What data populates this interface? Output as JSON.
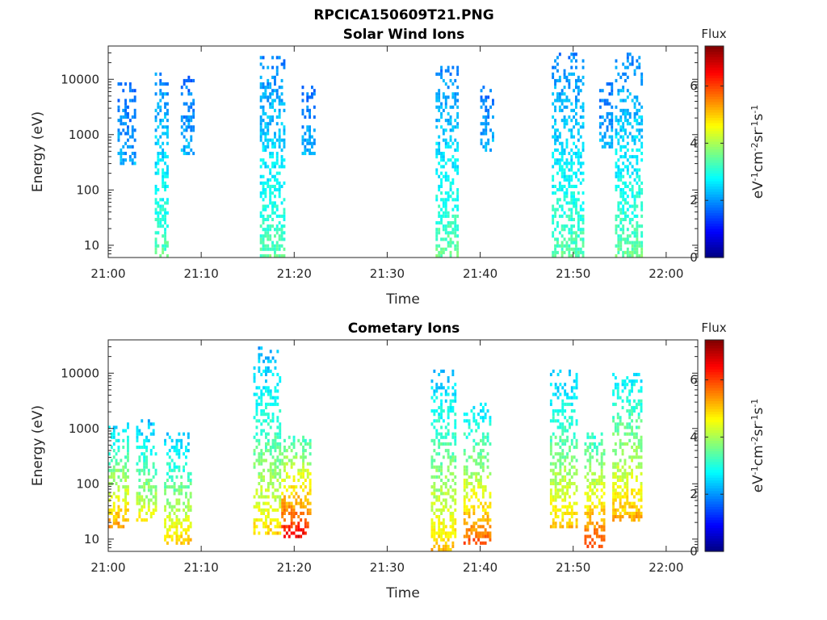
{
  "figure": {
    "file_title": "RPCICA150609T21.PNG"
  },
  "colorscale": {
    "name": "jet",
    "stops": [
      "#00007f",
      "#0000ff",
      "#007fff",
      "#00ffff",
      "#7fff7f",
      "#ffff00",
      "#ff7f00",
      "#ff0000",
      "#7f0000"
    ]
  },
  "chart_data": [
    {
      "type": "heatmap",
      "title": "Solar Wind Ions",
      "xlabel": "Time",
      "ylabel": "Energy (eV)",
      "x_ticks": [
        "21:00",
        "21:10",
        "21:20",
        "21:30",
        "21:40",
        "21:50",
        "22:00"
      ],
      "xlim_minutes": [
        0,
        63.4
      ],
      "y_scale": "log",
      "y_ticks": [
        10,
        100,
        1000,
        10000
      ],
      "ylim": [
        6,
        40000
      ],
      "colorbar": {
        "label": "Flux",
        "unit": "eV-1cm-2sr-1s-1",
        "ticks": [
          0,
          2,
          4,
          6
        ],
        "range": [
          0,
          7.4
        ]
      },
      "bursts": [
        {
          "t_start": 5.0,
          "t_end": 6.3,
          "e_min": 6,
          "e_max": 14000,
          "flux_min": 1.9,
          "flux_max": 3.5
        },
        {
          "t_start": 1.0,
          "t_end": 3.0,
          "e_min": 300,
          "e_max": 9000,
          "flux_min": 1.7,
          "flux_max": 2.2
        },
        {
          "t_start": 7.8,
          "t_end": 9.3,
          "e_min": 400,
          "e_max": 11000,
          "flux_min": 1.7,
          "flux_max": 2.3
        },
        {
          "t_start": 16.3,
          "t_end": 19.0,
          "e_min": 6,
          "e_max": 25000,
          "flux_min": 1.9,
          "flux_max": 3.5
        },
        {
          "t_start": 20.8,
          "t_end": 22.3,
          "e_min": 450,
          "e_max": 8000,
          "flux_min": 1.7,
          "flux_max": 2.3
        },
        {
          "t_start": 35.2,
          "t_end": 37.6,
          "e_min": 6,
          "e_max": 17000,
          "flux_min": 1.9,
          "flux_max": 3.6
        },
        {
          "t_start": 40.0,
          "t_end": 41.5,
          "e_min": 500,
          "e_max": 8000,
          "flux_min": 1.7,
          "flux_max": 2.3
        },
        {
          "t_start": 47.7,
          "t_end": 51.0,
          "e_min": 6,
          "e_max": 30000,
          "flux_min": 1.9,
          "flux_max": 3.5
        },
        {
          "t_start": 52.8,
          "t_end": 54.3,
          "e_min": 600,
          "e_max": 10000,
          "flux_min": 1.7,
          "flux_max": 2.3
        },
        {
          "t_start": 54.5,
          "t_end": 57.3,
          "e_min": 6,
          "e_max": 30000,
          "flux_min": 1.9,
          "flux_max": 3.6
        }
      ]
    },
    {
      "type": "heatmap",
      "title": "Cometary Ions",
      "xlabel": "Time",
      "ylabel": "Energy (eV)",
      "x_ticks": [
        "21:00",
        "21:10",
        "21:20",
        "21:30",
        "21:40",
        "21:50",
        "22:00"
      ],
      "xlim_minutes": [
        0,
        63.4
      ],
      "y_scale": "log",
      "y_ticks": [
        10,
        100,
        1000,
        10000
      ],
      "ylim": [
        6,
        40000
      ],
      "colorbar": {
        "label": "Flux",
        "unit": "eV-1cm-2sr-1s-1",
        "ticks": [
          0,
          2,
          4,
          6
        ],
        "range": [
          0,
          7.4
        ]
      },
      "bursts": [
        {
          "t_start": 0.0,
          "t_end": 2.2,
          "e_min": 15,
          "e_max": 1200,
          "flux_min": 2.5,
          "flux_max": 5.6
        },
        {
          "t_start": 3.0,
          "t_end": 5.2,
          "e_min": 20,
          "e_max": 1400,
          "flux_min": 2.3,
          "flux_max": 4.8
        },
        {
          "t_start": 6.0,
          "t_end": 9.0,
          "e_min": 8,
          "e_max": 900,
          "flux_min": 2.3,
          "flux_max": 5.2
        },
        {
          "t_start": 15.6,
          "t_end": 18.5,
          "e_min": 12,
          "e_max": 30000,
          "flux_min": 2.2,
          "flux_max": 5.0
        },
        {
          "t_start": 18.6,
          "t_end": 21.8,
          "e_min": 10,
          "e_max": 700,
          "flux_min": 3.2,
          "flux_max": 6.8
        },
        {
          "t_start": 34.7,
          "t_end": 37.4,
          "e_min": 6,
          "e_max": 12000,
          "flux_min": 2.3,
          "flux_max": 5.2
        },
        {
          "t_start": 38.2,
          "t_end": 41.2,
          "e_min": 8,
          "e_max": 3000,
          "flux_min": 2.5,
          "flux_max": 6.0
        },
        {
          "t_start": 47.5,
          "t_end": 50.5,
          "e_min": 15,
          "e_max": 12000,
          "flux_min": 2.3,
          "flux_max": 5.2
        },
        {
          "t_start": 51.2,
          "t_end": 53.4,
          "e_min": 7,
          "e_max": 900,
          "flux_min": 3.0,
          "flux_max": 6.2
        },
        {
          "t_start": 54.2,
          "t_end": 57.3,
          "e_min": 20,
          "e_max": 10000,
          "flux_min": 2.6,
          "flux_max": 5.4
        }
      ]
    }
  ]
}
